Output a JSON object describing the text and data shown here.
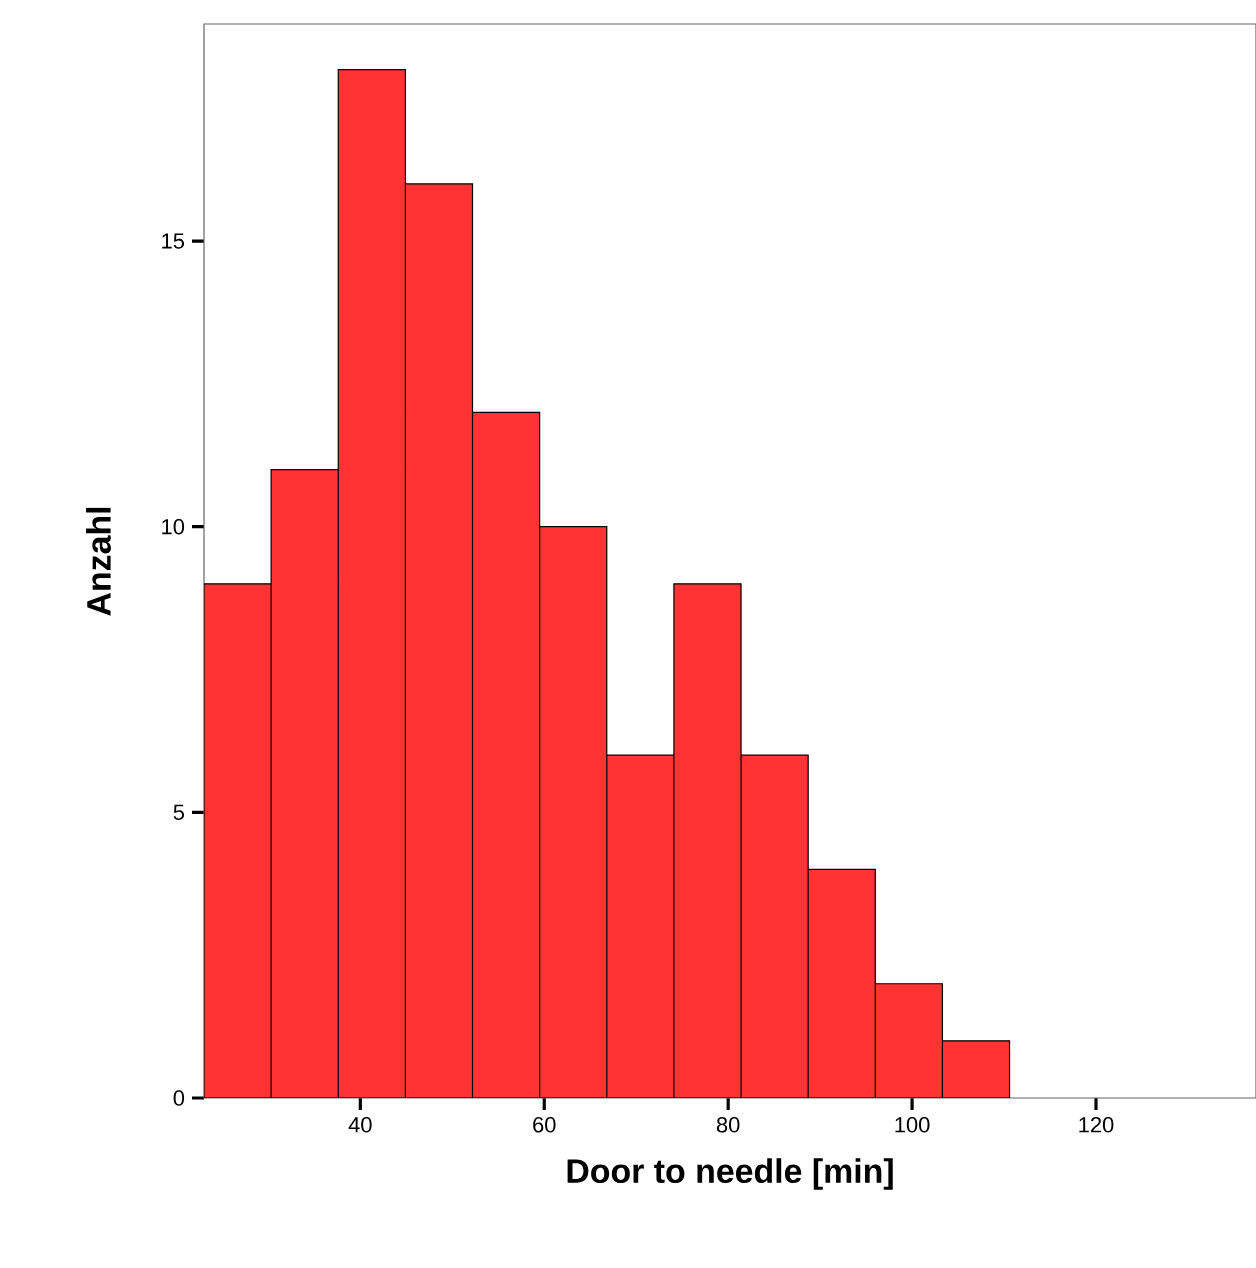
{
  "chart_data": {
    "type": "histogram",
    "xlabel": "Door to needle [min]",
    "ylabel": "Anzahl",
    "bins": [
      23.0,
      30.3,
      37.6,
      44.9,
      52.2,
      59.5,
      66.8,
      74.1,
      81.4,
      88.7,
      96.0,
      103.3,
      110.6
    ],
    "values": [
      9,
      11,
      18,
      16,
      12,
      10,
      6,
      9,
      6,
      4,
      2,
      1
    ],
    "color": "#ff3333",
    "xlim": [
      23.0,
      137.4
    ],
    "ylim": [
      0,
      18.8
    ],
    "xticks": [
      40,
      60,
      80,
      100,
      120
    ],
    "yticks": [
      0,
      5,
      10,
      15
    ],
    "grid": false
  }
}
